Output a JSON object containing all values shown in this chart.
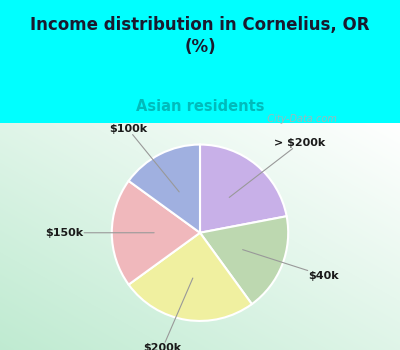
{
  "title": "Income distribution in Cornelius, OR\n(%)",
  "subtitle": "Asian residents",
  "title_color": "#1a1a2e",
  "subtitle_color": "#00bbbb",
  "background_cyan": "#00ffff",
  "labels": [
    "> $200k",
    "$40k",
    "$200k",
    "$150k",
    "$100k"
  ],
  "sizes": [
    22,
    18,
    25,
    20,
    15
  ],
  "colors": [
    "#c8b0e8",
    "#bdd8b0",
    "#f0f0a0",
    "#f0b8bc",
    "#a0b0e0"
  ],
  "startangle": 90,
  "watermark": "  City-Data.com"
}
